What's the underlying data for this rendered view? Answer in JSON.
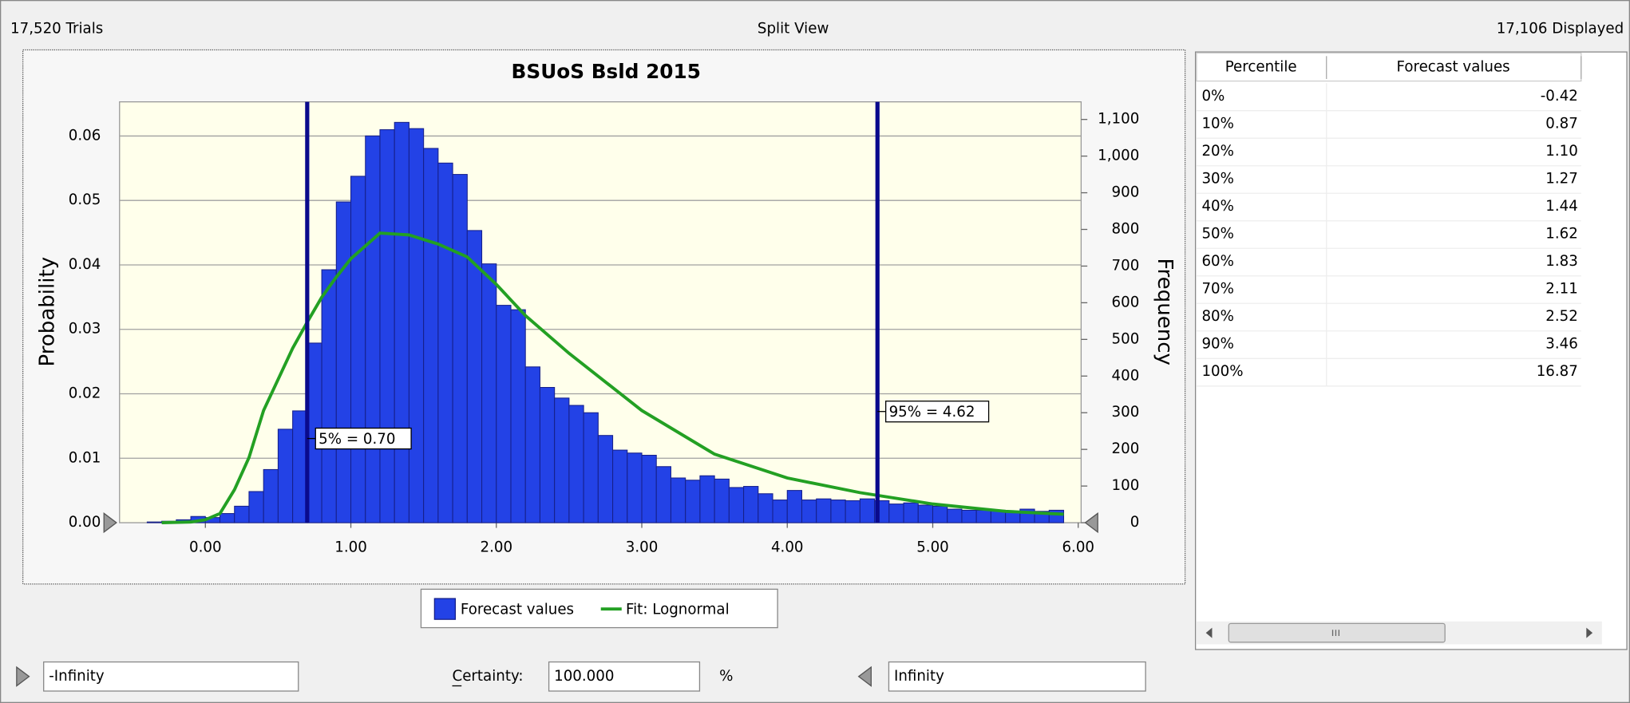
{
  "header": {
    "trials": "17,520 Trials",
    "view": "Split View",
    "displayed": "17,106 Displayed"
  },
  "chart_data": {
    "type": "histogram",
    "title": "BSUoS Bsld 2015",
    "ylabel": "Probability",
    "y2label": "Frequency",
    "xlim": [
      -0.59,
      6.02
    ],
    "xticks": [
      {
        "value": 0,
        "label": "0.00"
      },
      {
        "value": 1,
        "label": "1.00"
      },
      {
        "value": 2,
        "label": "2.00"
      },
      {
        "value": 3,
        "label": "3.00"
      },
      {
        "value": 4,
        "label": "4.00"
      },
      {
        "value": 5,
        "label": "5.00"
      },
      {
        "value": 6,
        "label": "6.00"
      }
    ],
    "ylim": [
      0,
      0.0653
    ],
    "yticks": [
      {
        "value": 0,
        "label": "0.00"
      },
      0.01,
      0.02,
      0.03,
      0.04,
      0.05,
      0.06
    ],
    "y2lim": [
      0,
      1148
    ],
    "y2ticks": [
      0,
      100,
      200,
      300,
      400,
      500,
      600,
      700,
      800,
      900,
      {
        "value": 1000,
        "label": "1,000"
      },
      {
        "value": 1100,
        "label": "1,100"
      }
    ],
    "grid": true,
    "bins": [
      -0.4,
      -0.3,
      -0.2,
      -0.1,
      0.0,
      0.1,
      0.2,
      0.3,
      0.4,
      0.5,
      0.6,
      0.7,
      0.8,
      0.9,
      1.0,
      1.1,
      1.2,
      1.3,
      1.4,
      1.5,
      1.6,
      1.7,
      1.8,
      1.9,
      2.0,
      2.1,
      2.2,
      2.3,
      2.4,
      2.5,
      2.6,
      2.7,
      2.8,
      2.9,
      3.0,
      3.1,
      3.2,
      3.3,
      3.4,
      3.5,
      3.6,
      3.7,
      3.8,
      3.9,
      4.0,
      4.1,
      4.2,
      4.3,
      4.4,
      4.5,
      4.6,
      4.7,
      4.8,
      4.9,
      5.0,
      5.1,
      5.2,
      5.3,
      5.4,
      5.5,
      5.6,
      5.7,
      5.8,
      5.9
    ],
    "series": [
      {
        "name": "Forecast values",
        "color": "#2342e6",
        "axis": "y2",
        "values": [
          2,
          4,
          8,
          17,
          14,
          25,
          45,
          85,
          145,
          255,
          305,
          490,
          690,
          875,
          945,
          1055,
          1072,
          1092,
          1075,
          1021,
          981,
          950,
          797,
          706,
          593,
          581,
          425,
          369,
          340,
          320,
          300,
          238,
          198,
          190,
          184,
          153,
          122,
          116,
          128,
          119,
          96,
          99,
          79,
          62,
          88,
          62,
          65,
          62,
          60,
          65,
          60,
          51,
          54,
          48,
          45,
          37,
          34,
          34,
          34,
          31,
          37,
          31,
          34
        ]
      },
      {
        "name": "Fit: Lognormal",
        "color": "#23a023",
        "axis": "y2",
        "type": "line",
        "x": [
          -0.3,
          -0.1,
          0,
          0.1,
          0.2,
          0.3,
          0.4,
          0.5,
          0.6,
          0.7,
          0.8,
          0.9,
          1.0,
          1.2,
          1.4,
          1.6,
          1.8,
          2.0,
          2.2,
          2.5,
          3.0,
          3.5,
          4.0,
          4.5,
          5.0,
          5.5,
          5.9
        ],
        "values": [
          0,
          2,
          8,
          25,
          90,
          178,
          306,
          391,
          476,
          547,
          615,
          670,
          720,
          790,
          785,
          760,
          725,
          650,
          565,
          462,
          306,
          187,
          122,
          82,
          51,
          31,
          23
        ]
      }
    ],
    "markers": [
      {
        "value": 0.7,
        "label": "5% = 0.70"
      },
      {
        "value": 4.62,
        "label": "95% = 4.62"
      }
    ]
  },
  "table": {
    "columns": [
      "Percentile",
      "Forecast values"
    ],
    "rows": [
      [
        "0%",
        "-0.42"
      ],
      [
        "10%",
        "0.87"
      ],
      [
        "20%",
        "1.10"
      ],
      [
        "30%",
        "1.27"
      ],
      [
        "40%",
        "1.44"
      ],
      [
        "50%",
        "1.62"
      ],
      [
        "60%",
        "1.83"
      ],
      [
        "70%",
        "2.11"
      ],
      [
        "80%",
        "2.52"
      ],
      [
        "90%",
        "3.46"
      ],
      [
        "100%",
        "16.87"
      ]
    ]
  },
  "controls": {
    "lower": "-Infinity",
    "certainty_label": "Certainty:",
    "certainty": "100.000",
    "percent": "%",
    "upper": "Infinity"
  }
}
